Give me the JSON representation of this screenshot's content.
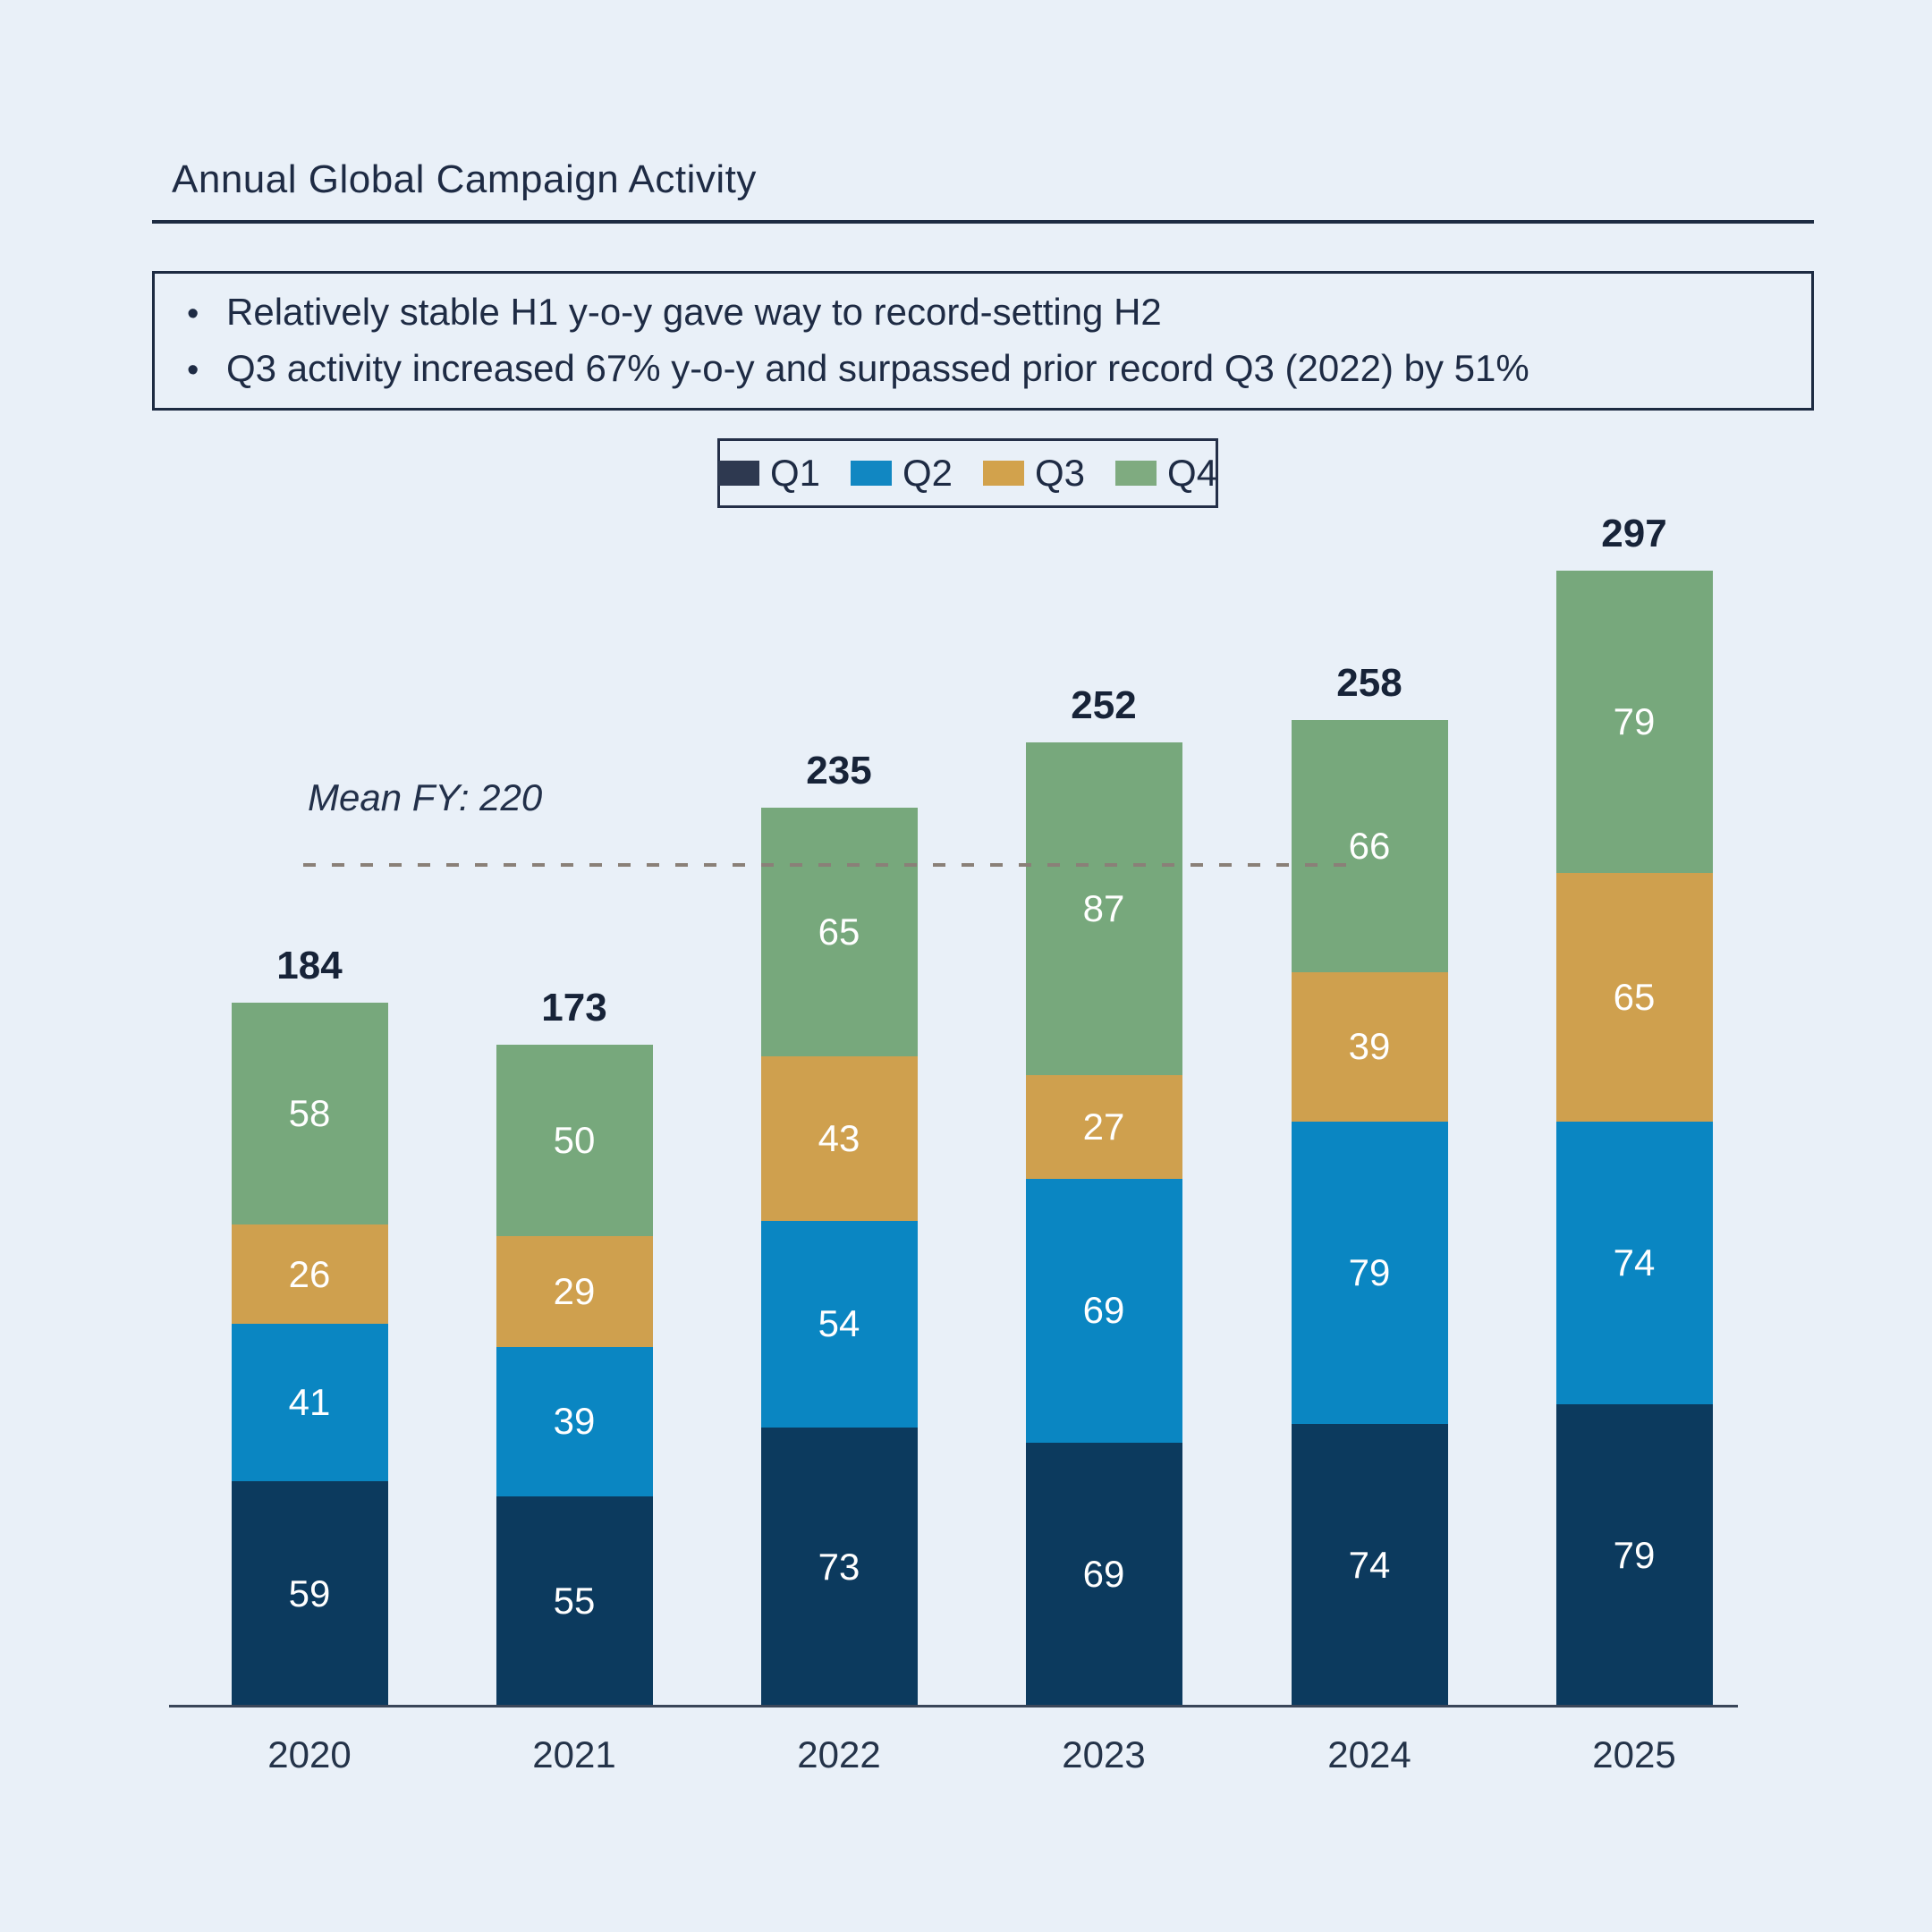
{
  "page": {
    "background": "#e9f0f8"
  },
  "header": {
    "title": "Annual Global Campaign Activity"
  },
  "callout": {
    "bullets": [
      "Relatively stable H1 y-o-y gave way to record-setting H2",
      "Q3 activity increased 67% y-o-y and surpassed prior record Q3 (2022) by 51%"
    ]
  },
  "chart_data": {
    "type": "bar",
    "stacked": true,
    "title": "Annual Global Campaign Activity",
    "categories": [
      "2020",
      "2021",
      "2022",
      "2023",
      "2024",
      "2025"
    ],
    "series": [
      {
        "name": "Q1",
        "color": "#0c3a5e",
        "legend_color": "#2e3950",
        "values": [
          59,
          55,
          73,
          69,
          74,
          79
        ]
      },
      {
        "name": "Q2",
        "color": "#0a86c2",
        "legend_color": "#1187c2",
        "values": [
          41,
          39,
          54,
          69,
          79,
          74
        ]
      },
      {
        "name": "Q3",
        "color": "#cfa04e",
        "legend_color": "#d2a24c",
        "values": [
          26,
          29,
          43,
          27,
          39,
          65
        ]
      },
      {
        "name": "Q4",
        "color": "#77a87c",
        "legend_color": "#7fab80",
        "values": [
          58,
          50,
          65,
          87,
          66,
          79
        ]
      }
    ],
    "totals": [
      184,
      173,
      235,
      252,
      258,
      297
    ],
    "mean_line": {
      "label": "Mean FY: 220",
      "value": 220,
      "color": "#8a8078"
    },
    "legend_position": "top",
    "xlabel": "",
    "ylabel": "",
    "ylim": [
      0,
      310
    ],
    "grid": false
  }
}
